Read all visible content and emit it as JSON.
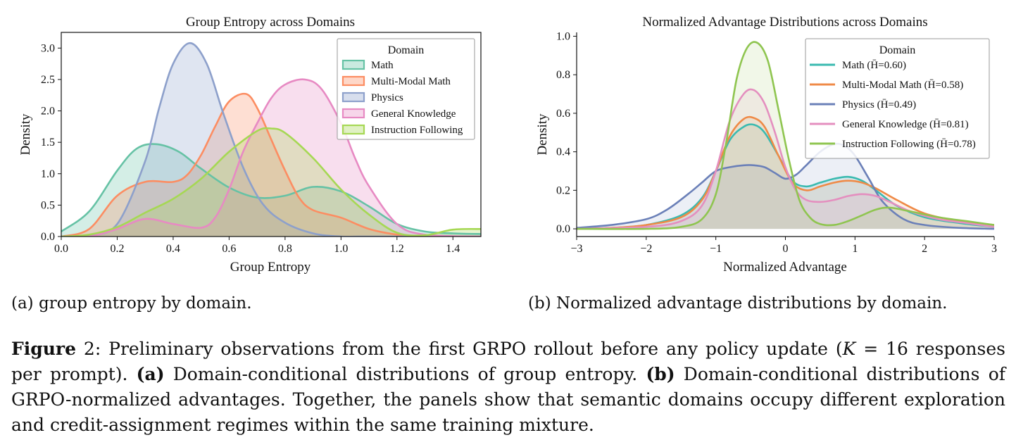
{
  "figure": {
    "subcaption_a": "(a) group entropy by domain.",
    "subcaption_b": "(b) Normalized advantage distributions by domain.",
    "caption": {
      "label": "Figure",
      "number": "2",
      "text1": ": Preliminary observations from the first GRPO rollout before any policy update (",
      "math_k": "K",
      "math_eq": " = 16",
      "text2": " responses per prompt). ",
      "a_label": "(a)",
      "a_text": " Domain-conditional distributions of group entropy. ",
      "b_label": "(b)",
      "b_text": " Domain-conditional distributions of GRPO-normalized advantages. Together, the panels show that semantic domains occupy different exploration and credit-assignment regimes within the same training mixture."
    }
  },
  "chart_data": [
    {
      "type": "area",
      "title": "Group Entropy across Domains",
      "xlabel": "Group Entropy",
      "ylabel": "Density",
      "xlim": [
        0.0,
        1.5
      ],
      "ylim": [
        0.0,
        3.25
      ],
      "xticks": [
        "0.0",
        "0.2",
        "0.4",
        "0.6",
        "0.8",
        "1.0",
        "1.2",
        "1.4"
      ],
      "yticks": [
        "0.0",
        "0.5",
        "1.0",
        "1.5",
        "2.0",
        "2.5",
        "3.0"
      ],
      "legend": {
        "title": "Domain",
        "placement": "top-right",
        "style": "patch"
      },
      "series": [
        {
          "name": "Math",
          "color": "#66c2a5",
          "x": [
            0.0,
            0.1,
            0.2,
            0.27,
            0.34,
            0.42,
            0.5,
            0.6,
            0.7,
            0.8,
            0.9,
            1.0,
            1.1,
            1.2,
            1.3,
            1.4,
            1.5
          ],
          "y": [
            0.08,
            0.4,
            1.05,
            1.4,
            1.47,
            1.35,
            1.08,
            0.78,
            0.62,
            0.65,
            0.79,
            0.72,
            0.48,
            0.2,
            0.08,
            0.05,
            0.04
          ]
        },
        {
          "name": "Multi-Modal Math",
          "color": "#fc8d62",
          "x": [
            0.0,
            0.1,
            0.2,
            0.3,
            0.4,
            0.45,
            0.5,
            0.55,
            0.6,
            0.66,
            0.7,
            0.75,
            0.8,
            0.85,
            0.9,
            1.0,
            1.1,
            1.2,
            1.3,
            1.5
          ],
          "y": [
            0.0,
            0.12,
            0.65,
            0.87,
            0.87,
            0.98,
            1.3,
            1.75,
            2.15,
            2.27,
            2.05,
            1.55,
            1.05,
            0.62,
            0.42,
            0.3,
            0.12,
            0.03,
            0.0,
            0.0
          ]
        },
        {
          "name": "Physics",
          "color": "#8da0cb",
          "x": [
            0.0,
            0.1,
            0.2,
            0.3,
            0.35,
            0.4,
            0.46,
            0.52,
            0.58,
            0.65,
            0.72,
            0.8,
            0.9,
            1.0,
            1.1,
            1.5
          ],
          "y": [
            0.0,
            0.02,
            0.2,
            1.2,
            2.05,
            2.75,
            3.08,
            2.75,
            1.95,
            1.1,
            0.52,
            0.22,
            0.05,
            0.0,
            0.0,
            0.0
          ]
        },
        {
          "name": "General Knowledge",
          "color": "#e78ac3",
          "x": [
            0.0,
            0.1,
            0.2,
            0.3,
            0.4,
            0.5,
            0.55,
            0.6,
            0.65,
            0.7,
            0.75,
            0.8,
            0.87,
            0.93,
            1.0,
            1.05,
            1.1,
            1.2,
            1.3,
            1.5
          ],
          "y": [
            0.0,
            0.0,
            0.12,
            0.28,
            0.2,
            0.14,
            0.3,
            0.75,
            1.35,
            1.8,
            2.2,
            2.42,
            2.5,
            2.35,
            1.8,
            1.25,
            0.8,
            0.2,
            0.03,
            0.0
          ]
        },
        {
          "name": "Instruction Following",
          "color": "#a6d854",
          "x": [
            0.0,
            0.1,
            0.2,
            0.3,
            0.4,
            0.5,
            0.6,
            0.7,
            0.75,
            0.8,
            0.9,
            1.0,
            1.1,
            1.2,
            1.3,
            1.4,
            1.5
          ],
          "y": [
            0.0,
            0.03,
            0.15,
            0.38,
            0.6,
            0.92,
            1.35,
            1.68,
            1.72,
            1.65,
            1.25,
            0.75,
            0.35,
            0.06,
            0.02,
            0.11,
            0.12
          ]
        }
      ]
    },
    {
      "type": "area",
      "title": "Normalized Advantage Distributions across Domains",
      "xlabel": "Normalized Advantage",
      "ylabel": "Density",
      "xlim": [
        -3,
        3
      ],
      "ylim": [
        -0.04,
        1.02
      ],
      "xticks": [
        "−3",
        "−2",
        "−1",
        "0",
        "1",
        "2",
        "3"
      ],
      "yticks": [
        "0.0",
        "0.2",
        "0.4",
        "0.6",
        "0.8",
        "1.0"
      ],
      "legend": {
        "title": "Domain",
        "placement": "top-right",
        "style": "line"
      },
      "series": [
        {
          "name": "Math",
          "stat": "(H̄=0.60)",
          "color": "#3bbab0",
          "x": [
            -3,
            -2.5,
            -2,
            -1.5,
            -1.2,
            -1,
            -0.8,
            -0.6,
            -0.45,
            -0.3,
            -0.1,
            0.1,
            0.3,
            0.5,
            0.7,
            0.9,
            1.1,
            1.3,
            1.6,
            2,
            2.5,
            3
          ],
          "y": [
            0.0,
            0.005,
            0.02,
            0.07,
            0.16,
            0.3,
            0.46,
            0.53,
            0.54,
            0.5,
            0.38,
            0.25,
            0.22,
            0.24,
            0.26,
            0.27,
            0.25,
            0.2,
            0.12,
            0.06,
            0.03,
            0.01
          ]
        },
        {
          "name": "Multi-Modal Math",
          "stat": "(H̄=0.58)",
          "color": "#ef8a47",
          "x": [
            -3,
            -2.5,
            -2,
            -1.5,
            -1.2,
            -1,
            -0.8,
            -0.6,
            -0.45,
            -0.3,
            -0.1,
            0.1,
            0.3,
            0.5,
            0.7,
            0.9,
            1.1,
            1.3,
            1.6,
            2,
            2.5,
            3
          ],
          "y": [
            0.0,
            0.005,
            0.02,
            0.06,
            0.15,
            0.3,
            0.48,
            0.57,
            0.575,
            0.53,
            0.38,
            0.24,
            0.2,
            0.22,
            0.24,
            0.25,
            0.24,
            0.21,
            0.15,
            0.08,
            0.04,
            0.02
          ]
        },
        {
          "name": "Physics",
          "stat": "(H̄=0.49)",
          "color": "#6b80b8",
          "x": [
            -3,
            -2.5,
            -2,
            -1.7,
            -1.4,
            -1.2,
            -1,
            -0.8,
            -0.6,
            -0.45,
            -0.3,
            -0.15,
            0,
            0.15,
            0.3,
            0.5,
            0.7,
            0.85,
            1.0,
            1.2,
            1.4,
            1.7,
            2,
            2.5,
            3
          ],
          "y": [
            0.005,
            0.02,
            0.05,
            0.1,
            0.18,
            0.24,
            0.3,
            0.32,
            0.33,
            0.33,
            0.32,
            0.29,
            0.26,
            0.28,
            0.33,
            0.4,
            0.44,
            0.43,
            0.38,
            0.26,
            0.14,
            0.05,
            0.02,
            0.005,
            0.0
          ]
        },
        {
          "name": "General Knowledge",
          "stat": "(H̄=0.81)",
          "color": "#e48fbf",
          "x": [
            -3,
            -2,
            -1.5,
            -1.2,
            -1,
            -0.8,
            -0.6,
            -0.45,
            -0.3,
            -0.15,
            0,
            0.15,
            0.3,
            0.5,
            0.7,
            0.9,
            1.1,
            1.3,
            1.5,
            1.8,
            2.2,
            2.6,
            3
          ],
          "y": [
            0.0,
            0.01,
            0.04,
            0.12,
            0.3,
            0.56,
            0.7,
            0.72,
            0.65,
            0.5,
            0.32,
            0.2,
            0.15,
            0.14,
            0.15,
            0.17,
            0.18,
            0.17,
            0.14,
            0.09,
            0.05,
            0.03,
            0.01
          ]
        },
        {
          "name": "Instruction Following",
          "stat": "(H̄=0.78)",
          "color": "#8fc550",
          "x": [
            -3,
            -2,
            -1.5,
            -1.2,
            -1,
            -0.85,
            -0.7,
            -0.55,
            -0.4,
            -0.25,
            -0.1,
            0.05,
            0.2,
            0.35,
            0.5,
            0.7,
            0.9,
            1.1,
            1.3,
            1.5,
            1.8,
            2.2,
            2.6,
            3
          ],
          "y": [
            0.0,
            0.0,
            0.01,
            0.05,
            0.18,
            0.45,
            0.78,
            0.94,
            0.965,
            0.87,
            0.62,
            0.36,
            0.15,
            0.06,
            0.025,
            0.02,
            0.04,
            0.07,
            0.1,
            0.11,
            0.09,
            0.06,
            0.04,
            0.02
          ]
        }
      ]
    }
  ]
}
